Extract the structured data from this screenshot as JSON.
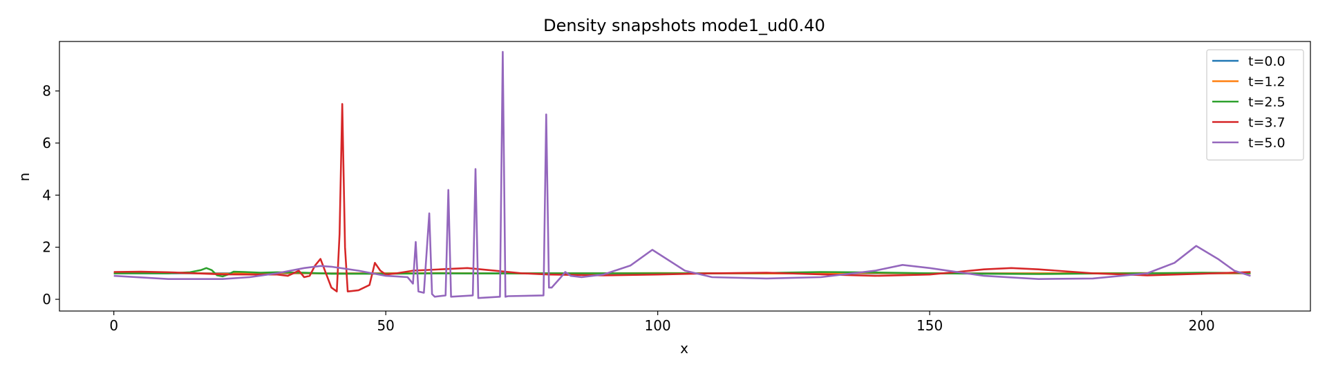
{
  "chart_data": {
    "type": "line",
    "title": "Density snapshots  mode1_ud0.40",
    "xlabel": "x",
    "ylabel": "n",
    "xlim": [
      -10,
      220
    ],
    "ylim": [
      -0.45,
      9.9
    ],
    "xticks": [
      0,
      50,
      100,
      150,
      200
    ],
    "yticks": [
      0,
      2,
      4,
      6,
      8
    ],
    "grid": false,
    "legend_position": "top-right",
    "series": [
      {
        "name": "t=0.0",
        "color": "#1f77b4",
        "x": [
          0,
          50,
          100,
          150,
          209
        ],
        "y": [
          1.0,
          1.0,
          1.0,
          1.0,
          1.0
        ]
      },
      {
        "name": "t=1.2",
        "color": "#ff7f0e",
        "x": [
          0,
          10,
          20,
          30,
          40,
          50,
          60,
          70,
          80,
          90,
          100,
          110,
          120,
          130,
          140,
          150,
          160,
          170,
          180,
          190,
          200,
          209
        ],
        "y": [
          1.0,
          1.02,
          0.98,
          1.01,
          0.99,
          1.0,
          1.01,
          0.99,
          1.0,
          1.0,
          1.01,
          1.0,
          0.99,
          1.0,
          1.01,
          1.0,
          0.99,
          1.0,
          1.0,
          1.01,
          1.0,
          1.0
        ]
      },
      {
        "name": "t=2.5",
        "color": "#2ca02c",
        "x": [
          0,
          5,
          10,
          14,
          16,
          17,
          18,
          19,
          20,
          21,
          22,
          24,
          27,
          30,
          35,
          40,
          50,
          60,
          70,
          80,
          90,
          100,
          110,
          120,
          130,
          140,
          150,
          160,
          170,
          180,
          190,
          200,
          209
        ],
        "y": [
          1.0,
          1.0,
          1.0,
          1.04,
          1.12,
          1.2,
          1.12,
          0.92,
          0.88,
          0.95,
          1.06,
          1.05,
          1.02,
          1.04,
          1.02,
          0.98,
          0.98,
          1.0,
          0.99,
          1.0,
          1.0,
          1.0,
          1.0,
          1.01,
          1.05,
          1.03,
          1.0,
          0.98,
          0.97,
          0.99,
          1.0,
          1.02,
          1.01
        ]
      },
      {
        "name": "t=3.7",
        "color": "#d62728",
        "x": [
          0,
          5,
          10,
          15,
          20,
          25,
          30,
          32,
          33,
          34,
          35,
          36,
          37,
          38,
          39,
          40,
          41,
          41.5,
          42,
          42.5,
          43,
          45,
          47,
          48,
          49,
          50,
          52,
          55,
          60,
          65,
          70,
          75,
          80,
          90,
          100,
          110,
          120,
          130,
          140,
          150,
          155,
          160,
          165,
          170,
          180,
          190,
          200,
          209
        ],
        "y": [
          1.05,
          1.06,
          1.04,
          1.0,
          0.96,
          0.95,
          0.95,
          0.9,
          1.0,
          1.1,
          0.85,
          0.9,
          1.3,
          1.55,
          1.0,
          0.45,
          0.3,
          2.5,
          7.5,
          2.0,
          0.3,
          0.35,
          0.55,
          1.4,
          1.1,
          0.95,
          1.0,
          1.1,
          1.15,
          1.2,
          1.1,
          1.0,
          0.95,
          0.92,
          0.95,
          1.0,
          1.02,
          0.96,
          0.9,
          0.95,
          1.05,
          1.15,
          1.2,
          1.15,
          1.0,
          0.92,
          0.98,
          1.05
        ]
      },
      {
        "name": "t=5.0",
        "color": "#9467bd",
        "x": [
          0,
          10,
          20,
          25,
          30,
          35,
          38,
          40,
          45,
          50,
          52,
          54,
          55,
          55.5,
          56,
          57,
          58,
          58.5,
          59,
          61,
          61.5,
          62,
          66,
          66.5,
          67,
          71,
          71.5,
          72,
          72.5,
          79,
          79.5,
          80,
          80.5,
          82,
          83,
          84,
          86,
          90,
          95,
          99,
          102,
          105,
          110,
          120,
          130,
          140,
          145,
          150,
          160,
          170,
          180,
          190,
          195,
          199,
          203,
          206,
          209
        ],
        "y": [
          0.9,
          0.78,
          0.78,
          0.85,
          1.0,
          1.2,
          1.28,
          1.25,
          1.1,
          0.9,
          0.88,
          0.85,
          0.6,
          2.2,
          0.3,
          0.25,
          3.3,
          0.2,
          0.1,
          0.15,
          4.2,
          0.1,
          0.15,
          5.0,
          0.05,
          0.1,
          9.5,
          0.1,
          0.12,
          0.15,
          7.1,
          0.45,
          0.45,
          0.8,
          1.05,
          0.9,
          0.85,
          0.95,
          1.3,
          1.9,
          1.5,
          1.1,
          0.85,
          0.8,
          0.85,
          1.1,
          1.32,
          1.2,
          0.9,
          0.78,
          0.8,
          1.0,
          1.4,
          2.05,
          1.55,
          1.1,
          0.9
        ]
      }
    ]
  }
}
